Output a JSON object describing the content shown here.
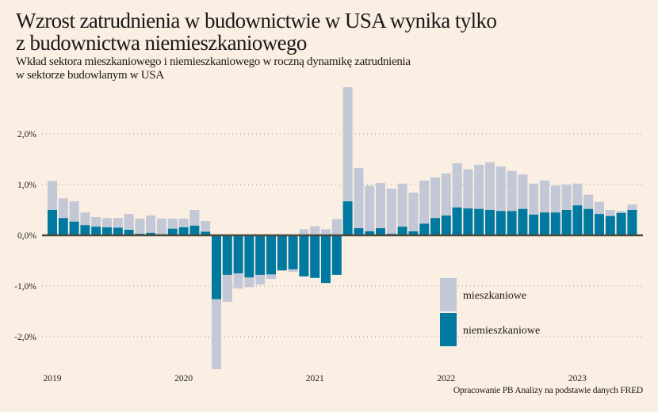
{
  "header": {
    "title_line1": "Wzrost zatrudnienia w budownictwie w USA wynika tylko",
    "title_line2": "z budownictwa niemieszkaniowego",
    "subtitle_line1": "Wkład sektora mieszkaniowego i niemieszkaniowego w roczną dynamikę zatrudnienia",
    "subtitle_line2": "w sektorze budowlanym w USA"
  },
  "source": "Opracowanie PB Analizy na podstawie danych FRED",
  "colors": {
    "background": "#FBEEE2",
    "residential": "#C2C8D6",
    "non_residential": "#0079A1",
    "zero_line": "#4A4A3C",
    "grid": "#A39C92"
  },
  "chart_data": {
    "type": "bar",
    "stacked": true,
    "title": "Wzrost zatrudnienia w budownictwie w USA wynika tylko z budownictwa niemieszkaniowego",
    "xlabel": "",
    "ylabel": "",
    "ylim": [
      -2.7,
      3.0
    ],
    "grid": true,
    "y_ticks": [
      2.0,
      1.0,
      0.0,
      -1.0,
      -2.0
    ],
    "y_tick_labels": [
      "2,0%",
      "1,0%",
      "0,0%",
      "-1,0%",
      "-2,0%"
    ],
    "x_tick_labels": [
      {
        "label": "2019",
        "index": 0
      },
      {
        "label": "2020",
        "index": 12
      },
      {
        "label": "2021",
        "index": 24
      },
      {
        "label": "2022",
        "index": 36
      },
      {
        "label": "2023",
        "index": 48
      }
    ],
    "period": "monthly, Jan 2019 – Jun 2023",
    "legend": {
      "placement": "bottom-right",
      "entries": [
        "mieszkaniowe",
        "niemieszkaniowe"
      ]
    },
    "series": [
      {
        "name": "mieszkaniowe",
        "values": [
          0.57,
          0.39,
          0.4,
          0.25,
          0.19,
          0.18,
          0.19,
          0.31,
          0.3,
          0.34,
          0.31,
          0.2,
          0.17,
          0.31,
          0.21,
          -1.38,
          -0.53,
          -0.3,
          -0.19,
          -0.19,
          -0.09,
          -0.01,
          -0.05,
          0.12,
          0.18,
          0.12,
          0.32,
          2.25,
          1.19,
          0.9,
          0.89,
          0.89,
          0.85,
          0.76,
          0.85,
          0.8,
          0.83,
          0.87,
          0.77,
          0.87,
          0.94,
          0.88,
          0.79,
          0.68,
          0.61,
          0.63,
          0.53,
          0.5,
          0.43,
          0.28,
          0.24,
          0.12,
          0.04,
          0.11
        ]
      },
      {
        "name": "niemieszkaniowe",
        "values": [
          0.5,
          0.34,
          0.27,
          0.2,
          0.17,
          0.16,
          0.15,
          0.11,
          0.03,
          0.05,
          0.02,
          0.13,
          0.16,
          0.19,
          0.07,
          -1.26,
          -0.78,
          -0.75,
          -0.83,
          -0.78,
          -0.77,
          -0.69,
          -0.67,
          -0.81,
          -0.84,
          -0.94,
          -0.78,
          0.67,
          0.14,
          0.08,
          0.14,
          0.03,
          0.17,
          0.08,
          0.23,
          0.34,
          0.39,
          0.55,
          0.53,
          0.52,
          0.5,
          0.48,
          0.48,
          0.52,
          0.41,
          0.45,
          0.45,
          0.5,
          0.59,
          0.52,
          0.42,
          0.38,
          0.44,
          0.5
        ]
      }
    ]
  }
}
